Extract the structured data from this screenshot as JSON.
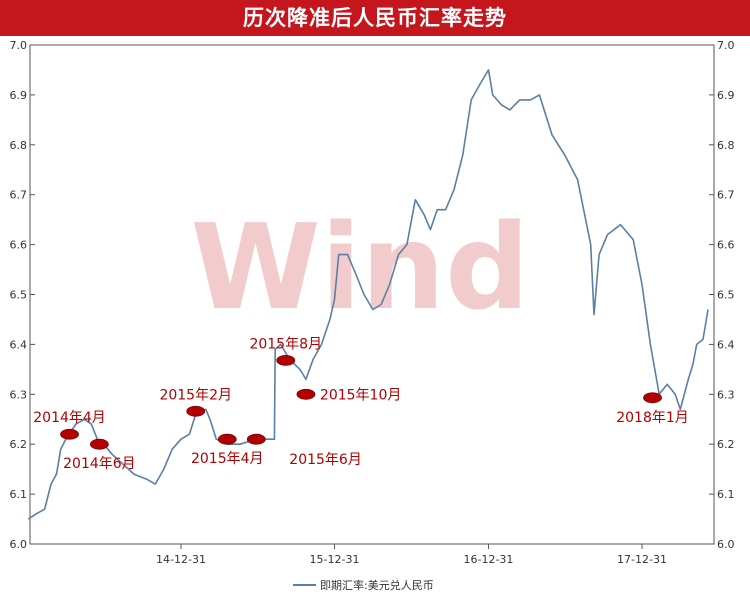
{
  "chart_data": {
    "type": "line",
    "title": "历次降准后人民币汇率走势",
    "watermark": "Wind",
    "xlabel": "",
    "ylabel": "",
    "ylim": [
      6.0,
      7.0
    ],
    "yticks": [
      "6.0",
      "6.1",
      "6.2",
      "6.3",
      "6.4",
      "6.5",
      "6.6",
      "6.7",
      "6.8",
      "6.9",
      "7.0"
    ],
    "xticks": [
      {
        "date": "2014-12-31",
        "label": "14-12-31"
      },
      {
        "date": "2015-12-31",
        "label": "15-12-31"
      },
      {
        "date": "2016-12-31",
        "label": "16-12-31"
      },
      {
        "date": "2017-12-31",
        "label": "17-12-31"
      }
    ],
    "xlim": [
      "2014-01-01",
      "2018-05-01"
    ],
    "grid": true,
    "legend_position": "bottom",
    "series": [
      {
        "name": "即期汇率:美元兑人民币",
        "color": "#5a7fa6",
        "points": [
          [
            "2014-01-02",
            6.05
          ],
          [
            "2014-01-20",
            6.06
          ],
          [
            "2014-02-10",
            6.07
          ],
          [
            "2014-02-25",
            6.12
          ],
          [
            "2014-03-10",
            6.14
          ],
          [
            "2014-03-20",
            6.19
          ],
          [
            "2014-04-01",
            6.21
          ],
          [
            "2014-04-25",
            6.24
          ],
          [
            "2014-05-15",
            6.25
          ],
          [
            "2014-06-01",
            6.24
          ],
          [
            "2014-06-15",
            6.21
          ],
          [
            "2014-06-30",
            6.2
          ],
          [
            "2014-07-20",
            6.18
          ],
          [
            "2014-08-15",
            6.16
          ],
          [
            "2014-09-10",
            6.14
          ],
          [
            "2014-10-10",
            6.13
          ],
          [
            "2014-10-31",
            6.12
          ],
          [
            "2014-11-20",
            6.15
          ],
          [
            "2014-12-10",
            6.19
          ],
          [
            "2014-12-31",
            6.21
          ],
          [
            "2015-01-20",
            6.22
          ],
          [
            "2015-02-04",
            6.26
          ],
          [
            "2015-02-28",
            6.27
          ],
          [
            "2015-03-10",
            6.25
          ],
          [
            "2015-03-25",
            6.21
          ],
          [
            "2015-04-20",
            6.2
          ],
          [
            "2015-05-20",
            6.2
          ],
          [
            "2015-06-28",
            6.21
          ],
          [
            "2015-08-10",
            6.21
          ],
          [
            "2015-08-12",
            6.39
          ],
          [
            "2015-08-25",
            6.4
          ],
          [
            "2015-09-15",
            6.37
          ],
          [
            "2015-10-10",
            6.35
          ],
          [
            "2015-10-24",
            6.33
          ],
          [
            "2015-11-10",
            6.37
          ],
          [
            "2015-11-30",
            6.4
          ],
          [
            "2015-12-20",
            6.45
          ],
          [
            "2015-12-31",
            6.49
          ],
          [
            "2016-01-10",
            6.58
          ],
          [
            "2016-01-31",
            6.58
          ],
          [
            "2016-02-20",
            6.54
          ],
          [
            "2016-03-10",
            6.5
          ],
          [
            "2016-03-31",
            6.47
          ],
          [
            "2016-04-20",
            6.48
          ],
          [
            "2016-05-10",
            6.52
          ],
          [
            "2016-05-31",
            6.58
          ],
          [
            "2016-06-20",
            6.6
          ],
          [
            "2016-07-10",
            6.69
          ],
          [
            "2016-07-31",
            6.66
          ],
          [
            "2016-08-15",
            6.63
          ],
          [
            "2016-08-31",
            6.67
          ],
          [
            "2016-09-20",
            6.67
          ],
          [
            "2016-10-10",
            6.71
          ],
          [
            "2016-10-31",
            6.78
          ],
          [
            "2016-11-20",
            6.89
          ],
          [
            "2016-12-10",
            6.92
          ],
          [
            "2016-12-31",
            6.95
          ],
          [
            "2017-01-10",
            6.9
          ],
          [
            "2017-01-31",
            6.88
          ],
          [
            "2017-02-20",
            6.87
          ],
          [
            "2017-03-15",
            6.89
          ],
          [
            "2017-04-10",
            6.89
          ],
          [
            "2017-05-01",
            6.9
          ],
          [
            "2017-05-31",
            6.82
          ],
          [
            "2017-06-30",
            6.78
          ],
          [
            "2017-07-31",
            6.73
          ],
          [
            "2017-08-31",
            6.6
          ],
          [
            "2017-09-08",
            6.46
          ],
          [
            "2017-09-20",
            6.58
          ],
          [
            "2017-10-10",
            6.62
          ],
          [
            "2017-11-10",
            6.64
          ],
          [
            "2017-12-10",
            6.61
          ],
          [
            "2017-12-31",
            6.52
          ],
          [
            "2018-01-20",
            6.4
          ],
          [
            "2018-02-10",
            6.3
          ],
          [
            "2018-03-01",
            6.32
          ],
          [
            "2018-03-20",
            6.3
          ],
          [
            "2018-04-01",
            6.27
          ],
          [
            "2018-04-20",
            6.33
          ],
          [
            "2018-05-01",
            6.36
          ],
          [
            "2018-05-10",
            6.4
          ],
          [
            "2018-05-25",
            6.41
          ],
          [
            "2018-06-06",
            6.47
          ]
        ]
      }
    ],
    "annotations": [
      {
        "label": "2014年4月",
        "date": "2014-04-10",
        "value": 6.22,
        "label_side": "above"
      },
      {
        "label": "2014年6月",
        "date": "2014-06-20",
        "value": 6.2,
        "label_side": "below"
      },
      {
        "label": "2015年2月",
        "date": "2015-02-04",
        "value": 6.266,
        "label_side": "above"
      },
      {
        "label": "2015年4月",
        "date": "2015-04-20",
        "value": 6.21,
        "label_side": "below"
      },
      {
        "label": "2015年6月",
        "date": "2015-06-28",
        "value": 6.21,
        "label_side": "below-right"
      },
      {
        "label": "2015年8月",
        "date": "2015-09-06",
        "value": 6.368,
        "label_side": "above"
      },
      {
        "label": "2015年10月",
        "date": "2015-10-24",
        "value": 6.3,
        "label_side": "right"
      },
      {
        "label": "2018年1月",
        "date": "2018-01-25",
        "value": 6.293,
        "label_side": "below"
      }
    ]
  }
}
